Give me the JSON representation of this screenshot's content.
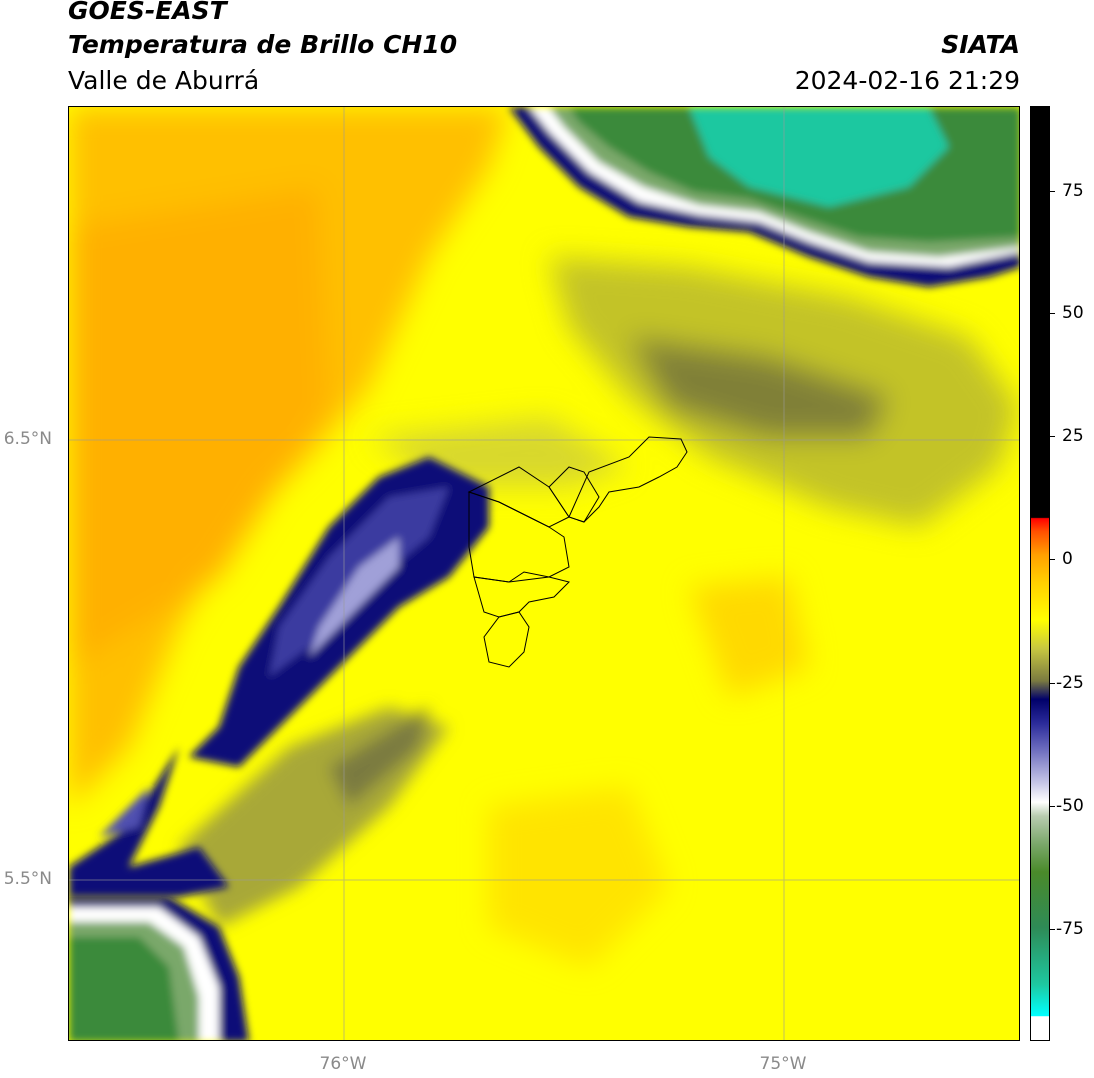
{
  "header": {
    "satellite": "GOES-EAST",
    "product": "Temperatura de Brillo CH10",
    "region": "Valle de Aburrá",
    "organization": "SIATA",
    "datetime": "2024-02-16 21:29"
  },
  "map": {
    "lat_labels": [
      "6.5°N",
      "5.5°N"
    ],
    "lon_labels": [
      "76°W",
      "75°W"
    ],
    "colors": {
      "warm_orange": "#ffb400",
      "yellow": "#ffff00",
      "olive": "#9a9a2a",
      "navy": "#0a0a78",
      "lavender": "#a0a0d8",
      "green": "#3a8a3a",
      "teal": "#1ec8a0"
    }
  },
  "colorbar": {
    "ticks": [
      "75",
      "50",
      "25",
      "0",
      "-25",
      "-50",
      "-75"
    ],
    "colors": [
      "#00ffff",
      "#1ec8a0",
      "#2e8b57",
      "#4a8a2a",
      "#7aa86a",
      "#b8ccb0",
      "#ffffff",
      "#c8c8e8",
      "#7070c0",
      "#2a2a9a",
      "#00006a",
      "#9a9a2a",
      "#e0e040",
      "#ffff00",
      "#ffd000",
      "#ffa000",
      "#ff5000",
      "#ff0000",
      "#000000"
    ]
  }
}
